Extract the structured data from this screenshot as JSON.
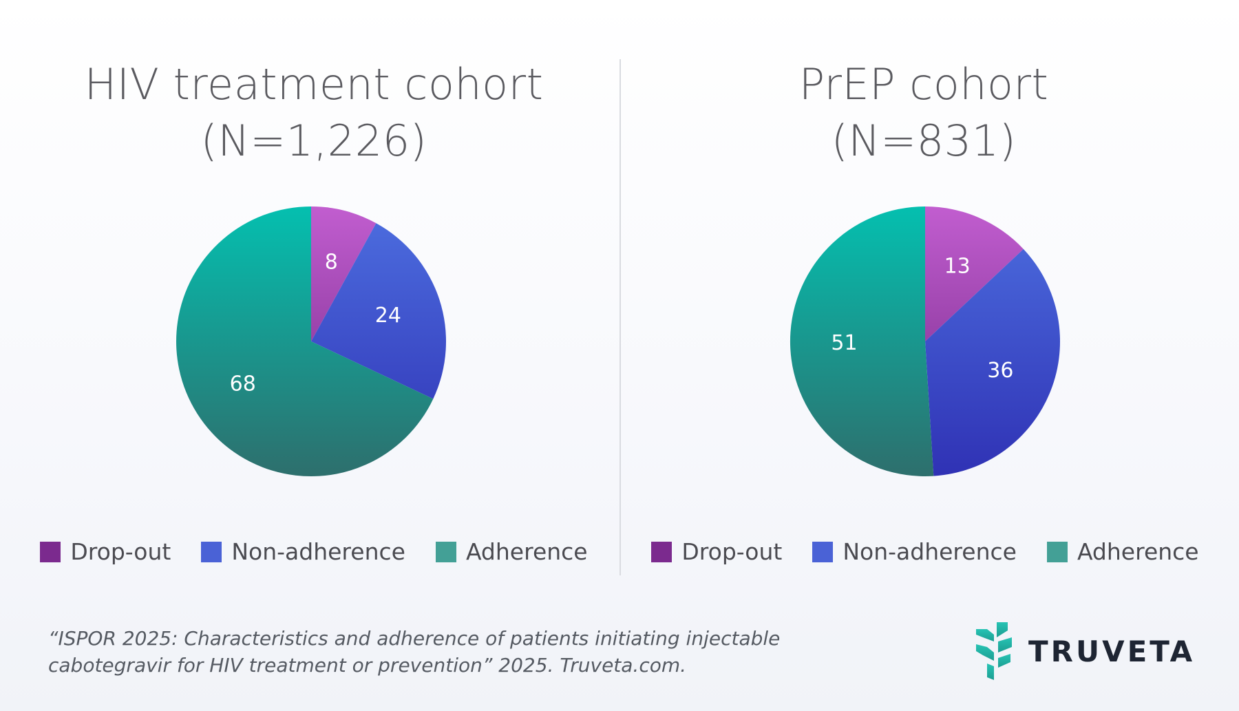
{
  "colors": {
    "dropout": "#7b2a8e",
    "nonadherence": "#4a62d6",
    "adherence": "#43a096"
  },
  "chart_data": [
    {
      "type": "pie",
      "title": "HIV treatment cohort",
      "subtitle": "(N=1,226)",
      "categories": [
        "Drop-out",
        "Non-adherence",
        "Adherence"
      ],
      "values": [
        8,
        24,
        68
      ],
      "labels": [
        "8",
        "24",
        "68"
      ],
      "legend_position": "bottom"
    },
    {
      "type": "pie",
      "title": "PrEP cohort",
      "subtitle": "(N=831)",
      "categories": [
        "Drop-out",
        "Non-adherence",
        "Adherence"
      ],
      "values": [
        13,
        36,
        51
      ],
      "labels": [
        "13",
        "36",
        "51"
      ],
      "legend_position": "bottom"
    }
  ],
  "citation": {
    "line1": "“ISPOR 2025: Characteristics and adherence of patients initiating injectable",
    "line2": "cabotegravir for HIV treatment or prevention” 2025. Truveta.com."
  },
  "logo": {
    "icon": "truveta-leaf-icon",
    "wordmark": "TRUVETA"
  }
}
